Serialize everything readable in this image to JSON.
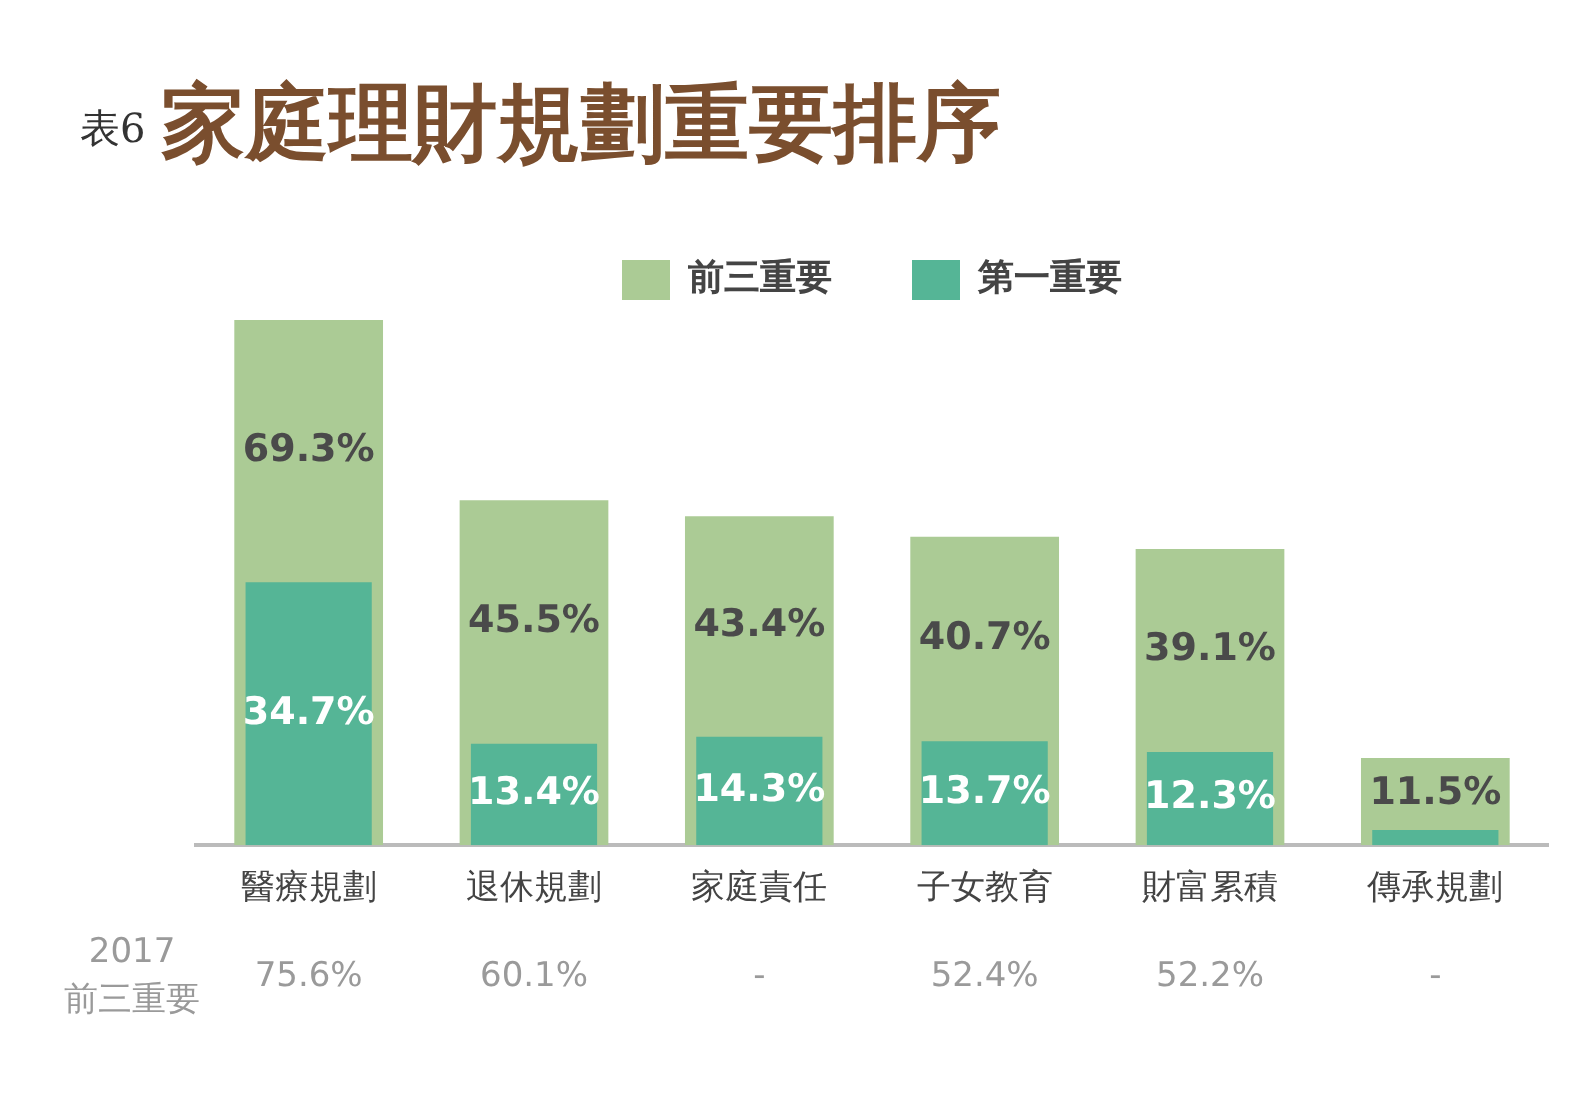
{
  "chart_data": {
    "type": "bar",
    "title": "表6 家庭理財規劃重要排序",
    "categories": [
      "醫療規劃",
      "退休規劃",
      "家庭責任",
      "子女教育",
      "財富累積",
      "傳承規劃"
    ],
    "series": [
      {
        "name": "第一重要",
        "color": "#55b596",
        "values": [
          34.7,
          13.4,
          14.3,
          13.7,
          12.3,
          2
        ],
        "value_labels": [
          "34.7%",
          "13.4%",
          "14.3%",
          "13.7%",
          "12.3%",
          null
        ]
      },
      {
        "name": "前三重要",
        "color": "#abcb95",
        "values": [
          69.3,
          45.5,
          43.4,
          40.7,
          39.1,
          11.5
        ],
        "value_labels": [
          "69.3%",
          "45.5%",
          "43.4%",
          "40.7%",
          "39.1%",
          "11.5%"
        ]
      }
    ],
    "legend": "top",
    "tick_labels": "x",
    "grid": false,
    "annotations": [
      "2017 前三重要",
      "75.6%",
      "60.1%",
      "-",
      "52.4%",
      "52.2%",
      "-"
    ]
  }
}
